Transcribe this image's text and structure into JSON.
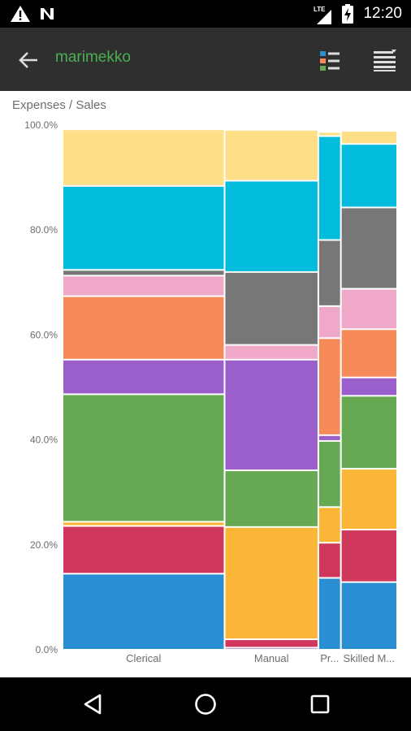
{
  "status_bar": {
    "time": "12:20",
    "network_label": "LTE",
    "icons": [
      "warning-icon",
      "n-notification-icon",
      "signal-icon",
      "battery-charging-icon"
    ]
  },
  "app_bar": {
    "title": "marimekko",
    "back_icon": "arrow-back-icon",
    "legend_icon": "legend-list-icon",
    "menu_icon": "data-menu-icon"
  },
  "chart_header": "Expenses / Sales",
  "colors": {
    "green_title": "#4caf50",
    "app_bar_bg": "#2f2f2f",
    "series": {
      "blue": "#2a8fd2",
      "red": "#d0375c",
      "amber": "#fcb637",
      "green": "#67a953",
      "purple": "#9a5fcb",
      "pink": "#f0a8c8",
      "orange": "#f68a59",
      "gray": "#777777",
      "cyan": "#02bcde",
      "yellow": "#fddf88"
    }
  },
  "chart_data": {
    "type": "marimekko",
    "title": "Expenses / Sales",
    "ylim": [
      0,
      100
    ],
    "y_ticks": [
      "0.0%",
      "20.0%",
      "40.0%",
      "60.0%",
      "80.0%",
      "100.0%"
    ],
    "categories": [
      "Clerical",
      "Manual",
      "Pr...",
      "Skilled M..."
    ],
    "column_widths": [
      0.489,
      0.283,
      0.068,
      0.17
    ],
    "columns": [
      {
        "name": "Clerical",
        "segments": [
          {
            "color": "blue",
            "value": 14.5
          },
          {
            "color": "red",
            "value": 9.1
          },
          {
            "color": "amber",
            "value": 0.8
          },
          {
            "color": "green",
            "value": 24.3
          },
          {
            "color": "purple",
            "value": 6.6
          },
          {
            "color": "orange",
            "value": 12.1
          },
          {
            "color": "pink",
            "value": 3.9
          },
          {
            "color": "gray",
            "value": 1.1
          },
          {
            "color": "cyan",
            "value": 16.0
          },
          {
            "color": "yellow",
            "value": 10.8
          }
        ]
      },
      {
        "name": "Manual",
        "segments": [
          {
            "color": "purple",
            "value": 0.4
          },
          {
            "color": "red",
            "value": 1.6
          },
          {
            "color": "amber",
            "value": 21.4
          },
          {
            "color": "green",
            "value": 10.8
          },
          {
            "color": "purple",
            "value": 21.1
          },
          {
            "color": "pink",
            "value": 2.8
          },
          {
            "color": "gray",
            "value": 13.9
          },
          {
            "color": "cyan",
            "value": 17.4
          },
          {
            "color": "yellow",
            "value": 9.7
          }
        ]
      },
      {
        "name": "Pr...",
        "segments": [
          {
            "color": "blue",
            "value": 13.7
          },
          {
            "color": "red",
            "value": 6.7
          },
          {
            "color": "amber",
            "value": 6.8
          },
          {
            "color": "green",
            "value": 12.6
          },
          {
            "color": "purple",
            "value": 1.1
          },
          {
            "color": "orange",
            "value": 18.5
          },
          {
            "color": "pink",
            "value": 6.1
          },
          {
            "color": "gray",
            "value": 12.6
          },
          {
            "color": "cyan",
            "value": 19.8
          },
          {
            "color": "yellow",
            "value": 0.8
          }
        ]
      },
      {
        "name": "Skilled M...",
        "segments": [
          {
            "color": "blue",
            "value": 12.9
          },
          {
            "color": "red",
            "value": 10.0
          },
          {
            "color": "amber",
            "value": 11.6
          },
          {
            "color": "green",
            "value": 13.9
          },
          {
            "color": "purple",
            "value": 3.5
          },
          {
            "color": "orange",
            "value": 9.2
          },
          {
            "color": "pink",
            "value": 7.7
          },
          {
            "color": "gray",
            "value": 15.5
          },
          {
            "color": "cyan",
            "value": 12.1
          },
          {
            "color": "yellow",
            "value": 2.5
          }
        ]
      }
    ],
    "grid": false,
    "legend": "none"
  },
  "nav_bar": {
    "buttons": [
      "back-nav",
      "home-nav",
      "recents-nav"
    ]
  }
}
